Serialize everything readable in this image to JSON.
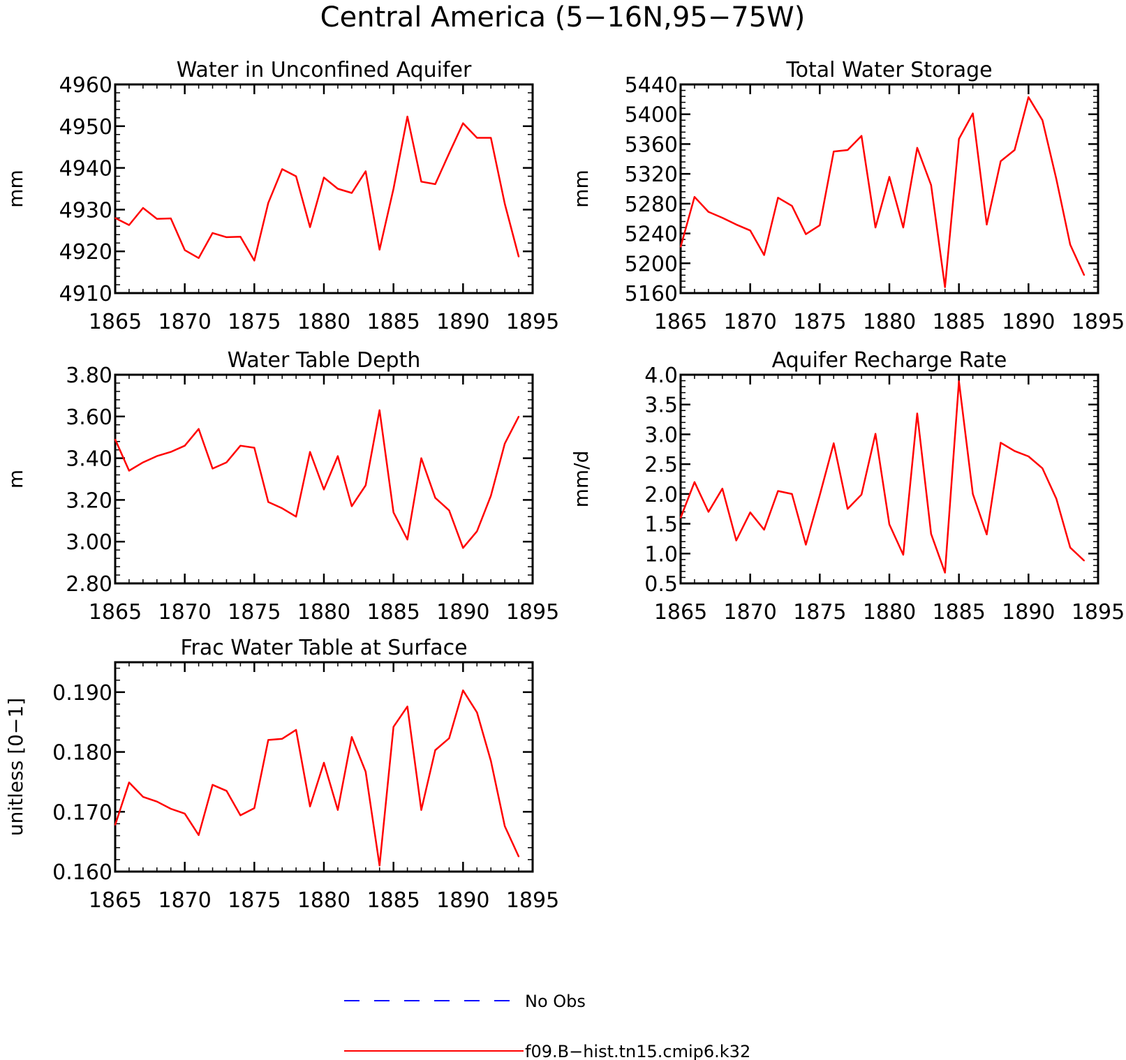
{
  "figure_title": "Central America (5−16N,95−75W)",
  "legend": [
    {
      "label": "No Obs",
      "color": "#0000ff",
      "dash": true
    },
    {
      "label": "f09.B−hist.tn15.cmip6.k32",
      "color": "#ff0000",
      "dash": false
    }
  ],
  "chart_data": [
    {
      "type": "line",
      "title": "Water in Unconfined Aquifer",
      "ylabel": "mm",
      "xlim": [
        1865,
        1895
      ],
      "ylim": [
        4910,
        4960
      ],
      "xticks": [
        1865,
        1870,
        1875,
        1880,
        1885,
        1890,
        1895
      ],
      "yticks": [
        4910,
        4920,
        4930,
        4940,
        4950,
        4960
      ],
      "ytick_labels": [
        "4910",
        "4920",
        "4930",
        "4940",
        "4950",
        "4960"
      ],
      "series": [
        {
          "name": "f09.B−hist.tn15.cmip6.k32",
          "color": "#ff0000",
          "x": [
            1865,
            1866,
            1867,
            1868,
            1869,
            1870,
            1871,
            1872,
            1873,
            1874,
            1875,
            1876,
            1877,
            1878,
            1879,
            1880,
            1881,
            1882,
            1883,
            1884,
            1885,
            1886,
            1887,
            1888,
            1889,
            1890,
            1891,
            1892,
            1893,
            1894
          ],
          "y": [
            4928.0,
            4926.3,
            4930.4,
            4927.8,
            4927.9,
            4920.3,
            4918.4,
            4924.4,
            4923.4,
            4923.5,
            4917.8,
            4931.6,
            4939.7,
            4938.0,
            4925.8,
            4937.7,
            4935.0,
            4934.0,
            4939.2,
            4920.4,
            4935.0,
            4952.3,
            4936.7,
            4936.1,
            4943.5,
            4950.7,
            4947.2,
            4947.2,
            4931.4,
            4918.7
          ]
        }
      ]
    },
    {
      "type": "line",
      "title": "Total Water Storage",
      "ylabel": "mm",
      "xlim": [
        1865,
        1895
      ],
      "ylim": [
        5160,
        5440
      ],
      "xticks": [
        1865,
        1870,
        1875,
        1880,
        1885,
        1890,
        1895
      ],
      "yticks": [
        5160,
        5200,
        5240,
        5280,
        5320,
        5360,
        5400,
        5440
      ],
      "ytick_labels": [
        "5160",
        "5200",
        "5240",
        "5280",
        "5320",
        "5360",
        "5400",
        "5440"
      ],
      "series": [
        {
          "name": "f09.B−hist.tn15.cmip6.k32",
          "color": "#ff0000",
          "x": [
            1865,
            1866,
            1867,
            1868,
            1869,
            1870,
            1871,
            1872,
            1873,
            1874,
            1875,
            1876,
            1877,
            1878,
            1879,
            1880,
            1881,
            1882,
            1883,
            1884,
            1885,
            1886,
            1887,
            1888,
            1889,
            1890,
            1891,
            1892,
            1893,
            1894
          ],
          "y": [
            5222,
            5289,
            5269,
            5261,
            5252,
            5244,
            5211,
            5288,
            5277,
            5239,
            5251,
            5350,
            5352,
            5371,
            5248,
            5316,
            5248,
            5355,
            5305,
            5168,
            5367,
            5401,
            5252,
            5337,
            5352,
            5423,
            5392,
            5313,
            5225,
            5184
          ]
        }
      ]
    },
    {
      "type": "line",
      "title": "Water Table Depth",
      "ylabel": "m",
      "xlim": [
        1865,
        1895
      ],
      "ylim": [
        2.8,
        3.8
      ],
      "xticks": [
        1865,
        1870,
        1875,
        1880,
        1885,
        1890,
        1895
      ],
      "yticks": [
        2.8,
        3.0,
        3.2,
        3.4,
        3.6,
        3.8
      ],
      "ytick_labels": [
        "2.80",
        "3.00",
        "3.20",
        "3.40",
        "3.60",
        "3.80"
      ],
      "series": [
        {
          "name": "f09.B−hist.tn15.cmip6.k32",
          "color": "#ff0000",
          "x": [
            1865,
            1866,
            1867,
            1868,
            1869,
            1870,
            1871,
            1872,
            1873,
            1874,
            1875,
            1876,
            1877,
            1878,
            1879,
            1880,
            1881,
            1882,
            1883,
            1884,
            1885,
            1886,
            1887,
            1888,
            1889,
            1890,
            1891,
            1892,
            1893,
            1894
          ],
          "y": [
            3.49,
            3.34,
            3.38,
            3.41,
            3.43,
            3.46,
            3.54,
            3.35,
            3.38,
            3.46,
            3.45,
            3.19,
            3.16,
            3.12,
            3.43,
            3.25,
            3.41,
            3.17,
            3.27,
            3.63,
            3.14,
            3.01,
            3.4,
            3.21,
            3.15,
            2.97,
            3.05,
            3.22,
            3.47,
            3.6
          ]
        }
      ]
    },
    {
      "type": "line",
      "title": "Aquifer Recharge Rate",
      "ylabel": "mm/d",
      "xlim": [
        1865,
        1895
      ],
      "ylim": [
        0.5,
        4.0
      ],
      "xticks": [
        1865,
        1870,
        1875,
        1880,
        1885,
        1890,
        1895
      ],
      "yticks": [
        0.5,
        1.0,
        1.5,
        2.0,
        2.5,
        3.0,
        3.5,
        4.0
      ],
      "ytick_labels": [
        "0.5",
        "1.0",
        "1.5",
        "2.0",
        "2.5",
        "3.0",
        "3.5",
        "4.0"
      ],
      "series": [
        {
          "name": "f09.B−hist.tn15.cmip6.k32",
          "color": "#ff0000",
          "x": [
            1865,
            1866,
            1867,
            1868,
            1869,
            1870,
            1871,
            1872,
            1873,
            1874,
            1875,
            1876,
            1877,
            1878,
            1879,
            1880,
            1881,
            1882,
            1883,
            1884,
            1885,
            1886,
            1887,
            1888,
            1889,
            1890,
            1891,
            1892,
            1893,
            1894
          ],
          "y": [
            1.6,
            2.2,
            1.7,
            2.09,
            1.22,
            1.69,
            1.4,
            2.05,
            2.0,
            1.15,
            1.98,
            2.85,
            1.75,
            1.99,
            3.01,
            1.49,
            0.98,
            3.35,
            1.33,
            0.68,
            3.89,
            2.0,
            1.32,
            2.86,
            2.72,
            2.63,
            2.43,
            1.92,
            1.1,
            0.88
          ]
        }
      ]
    },
    {
      "type": "line",
      "title": "Frac Water Table at Surface",
      "ylabel": "unitless [0−1]",
      "xlim": [
        1865,
        1895
      ],
      "ylim": [
        0.16,
        0.195
      ],
      "xticks": [
        1865,
        1870,
        1875,
        1880,
        1885,
        1890,
        1895
      ],
      "yticks": [
        0.16,
        0.17,
        0.18,
        0.19
      ],
      "ytick_labels": [
        "0.160",
        "0.170",
        "0.180",
        "0.190"
      ],
      "series": [
        {
          "name": "f09.B−hist.tn15.cmip6.k32",
          "color": "#ff0000",
          "x": [
            1865,
            1866,
            1867,
            1868,
            1869,
            1870,
            1871,
            1872,
            1873,
            1874,
            1875,
            1876,
            1877,
            1878,
            1879,
            1880,
            1881,
            1882,
            1883,
            1884,
            1885,
            1886,
            1887,
            1888,
            1889,
            1890,
            1891,
            1892,
            1893,
            1894
          ],
          "y": [
            0.1678,
            0.1749,
            0.1725,
            0.1717,
            0.1705,
            0.1697,
            0.1661,
            0.1745,
            0.1735,
            0.1694,
            0.1706,
            0.182,
            0.1822,
            0.1837,
            0.1709,
            0.1782,
            0.1703,
            0.1825,
            0.1767,
            0.161,
            0.1842,
            0.1876,
            0.1703,
            0.1803,
            0.1823,
            0.1903,
            0.1866,
            0.1785,
            0.1676,
            0.1625
          ]
        }
      ]
    }
  ]
}
